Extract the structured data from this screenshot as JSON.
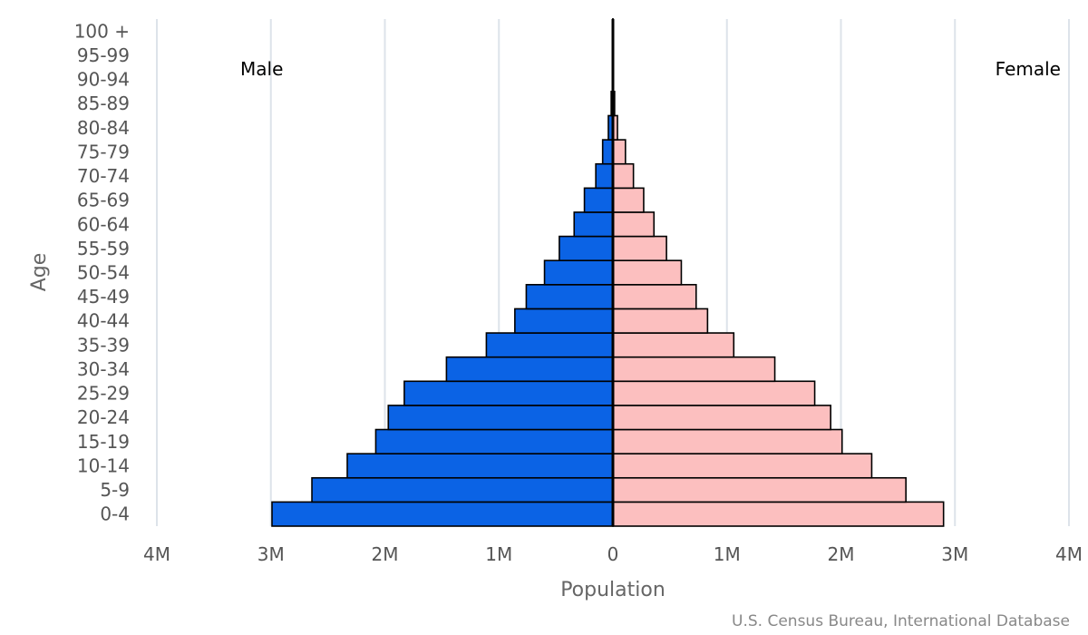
{
  "chart_data": {
    "type": "bar",
    "orientation": "horizontal",
    "style": "population-pyramid",
    "categories": [
      "0-4",
      "5-9",
      "10-14",
      "15-19",
      "20-24",
      "25-29",
      "30-34",
      "35-39",
      "40-44",
      "45-49",
      "50-54",
      "55-59",
      "60-64",
      "65-69",
      "70-74",
      "75-79",
      "80-84",
      "85-89",
      "90-94",
      "95-99",
      "100 +"
    ],
    "series": [
      {
        "name": "Male",
        "color": "#0b63e5",
        "values": [
          2.99,
          2.64,
          2.33,
          2.08,
          1.97,
          1.83,
          1.46,
          1.11,
          0.86,
          0.76,
          0.6,
          0.47,
          0.34,
          0.25,
          0.15,
          0.09,
          0.04,
          0.015,
          0.005,
          0.002,
          0.001
        ]
      },
      {
        "name": "Female",
        "color": "#fcbfbf",
        "values": [
          2.9,
          2.57,
          2.27,
          2.01,
          1.91,
          1.77,
          1.42,
          1.06,
          0.83,
          0.73,
          0.6,
          0.47,
          0.36,
          0.27,
          0.18,
          0.11,
          0.04,
          0.015,
          0.005,
          0.002,
          0.001
        ]
      }
    ],
    "value_unit": "millions",
    "xlim": [
      -4,
      4
    ],
    "xticks": [
      {
        "value": -4,
        "label": "4M"
      },
      {
        "value": -3,
        "label": "3M"
      },
      {
        "value": -2,
        "label": "2M"
      },
      {
        "value": -1,
        "label": "1M"
      },
      {
        "value": 0,
        "label": "0"
      },
      {
        "value": 1,
        "label": "1M"
      },
      {
        "value": 2,
        "label": "2M"
      },
      {
        "value": 3,
        "label": "3M"
      },
      {
        "value": 4,
        "label": "4M"
      }
    ],
    "xlabel": "Population",
    "ylabel": "Age",
    "grid": true,
    "grid_color": "#dde3ea",
    "credit": "U.S. Census Bureau, International Database"
  }
}
